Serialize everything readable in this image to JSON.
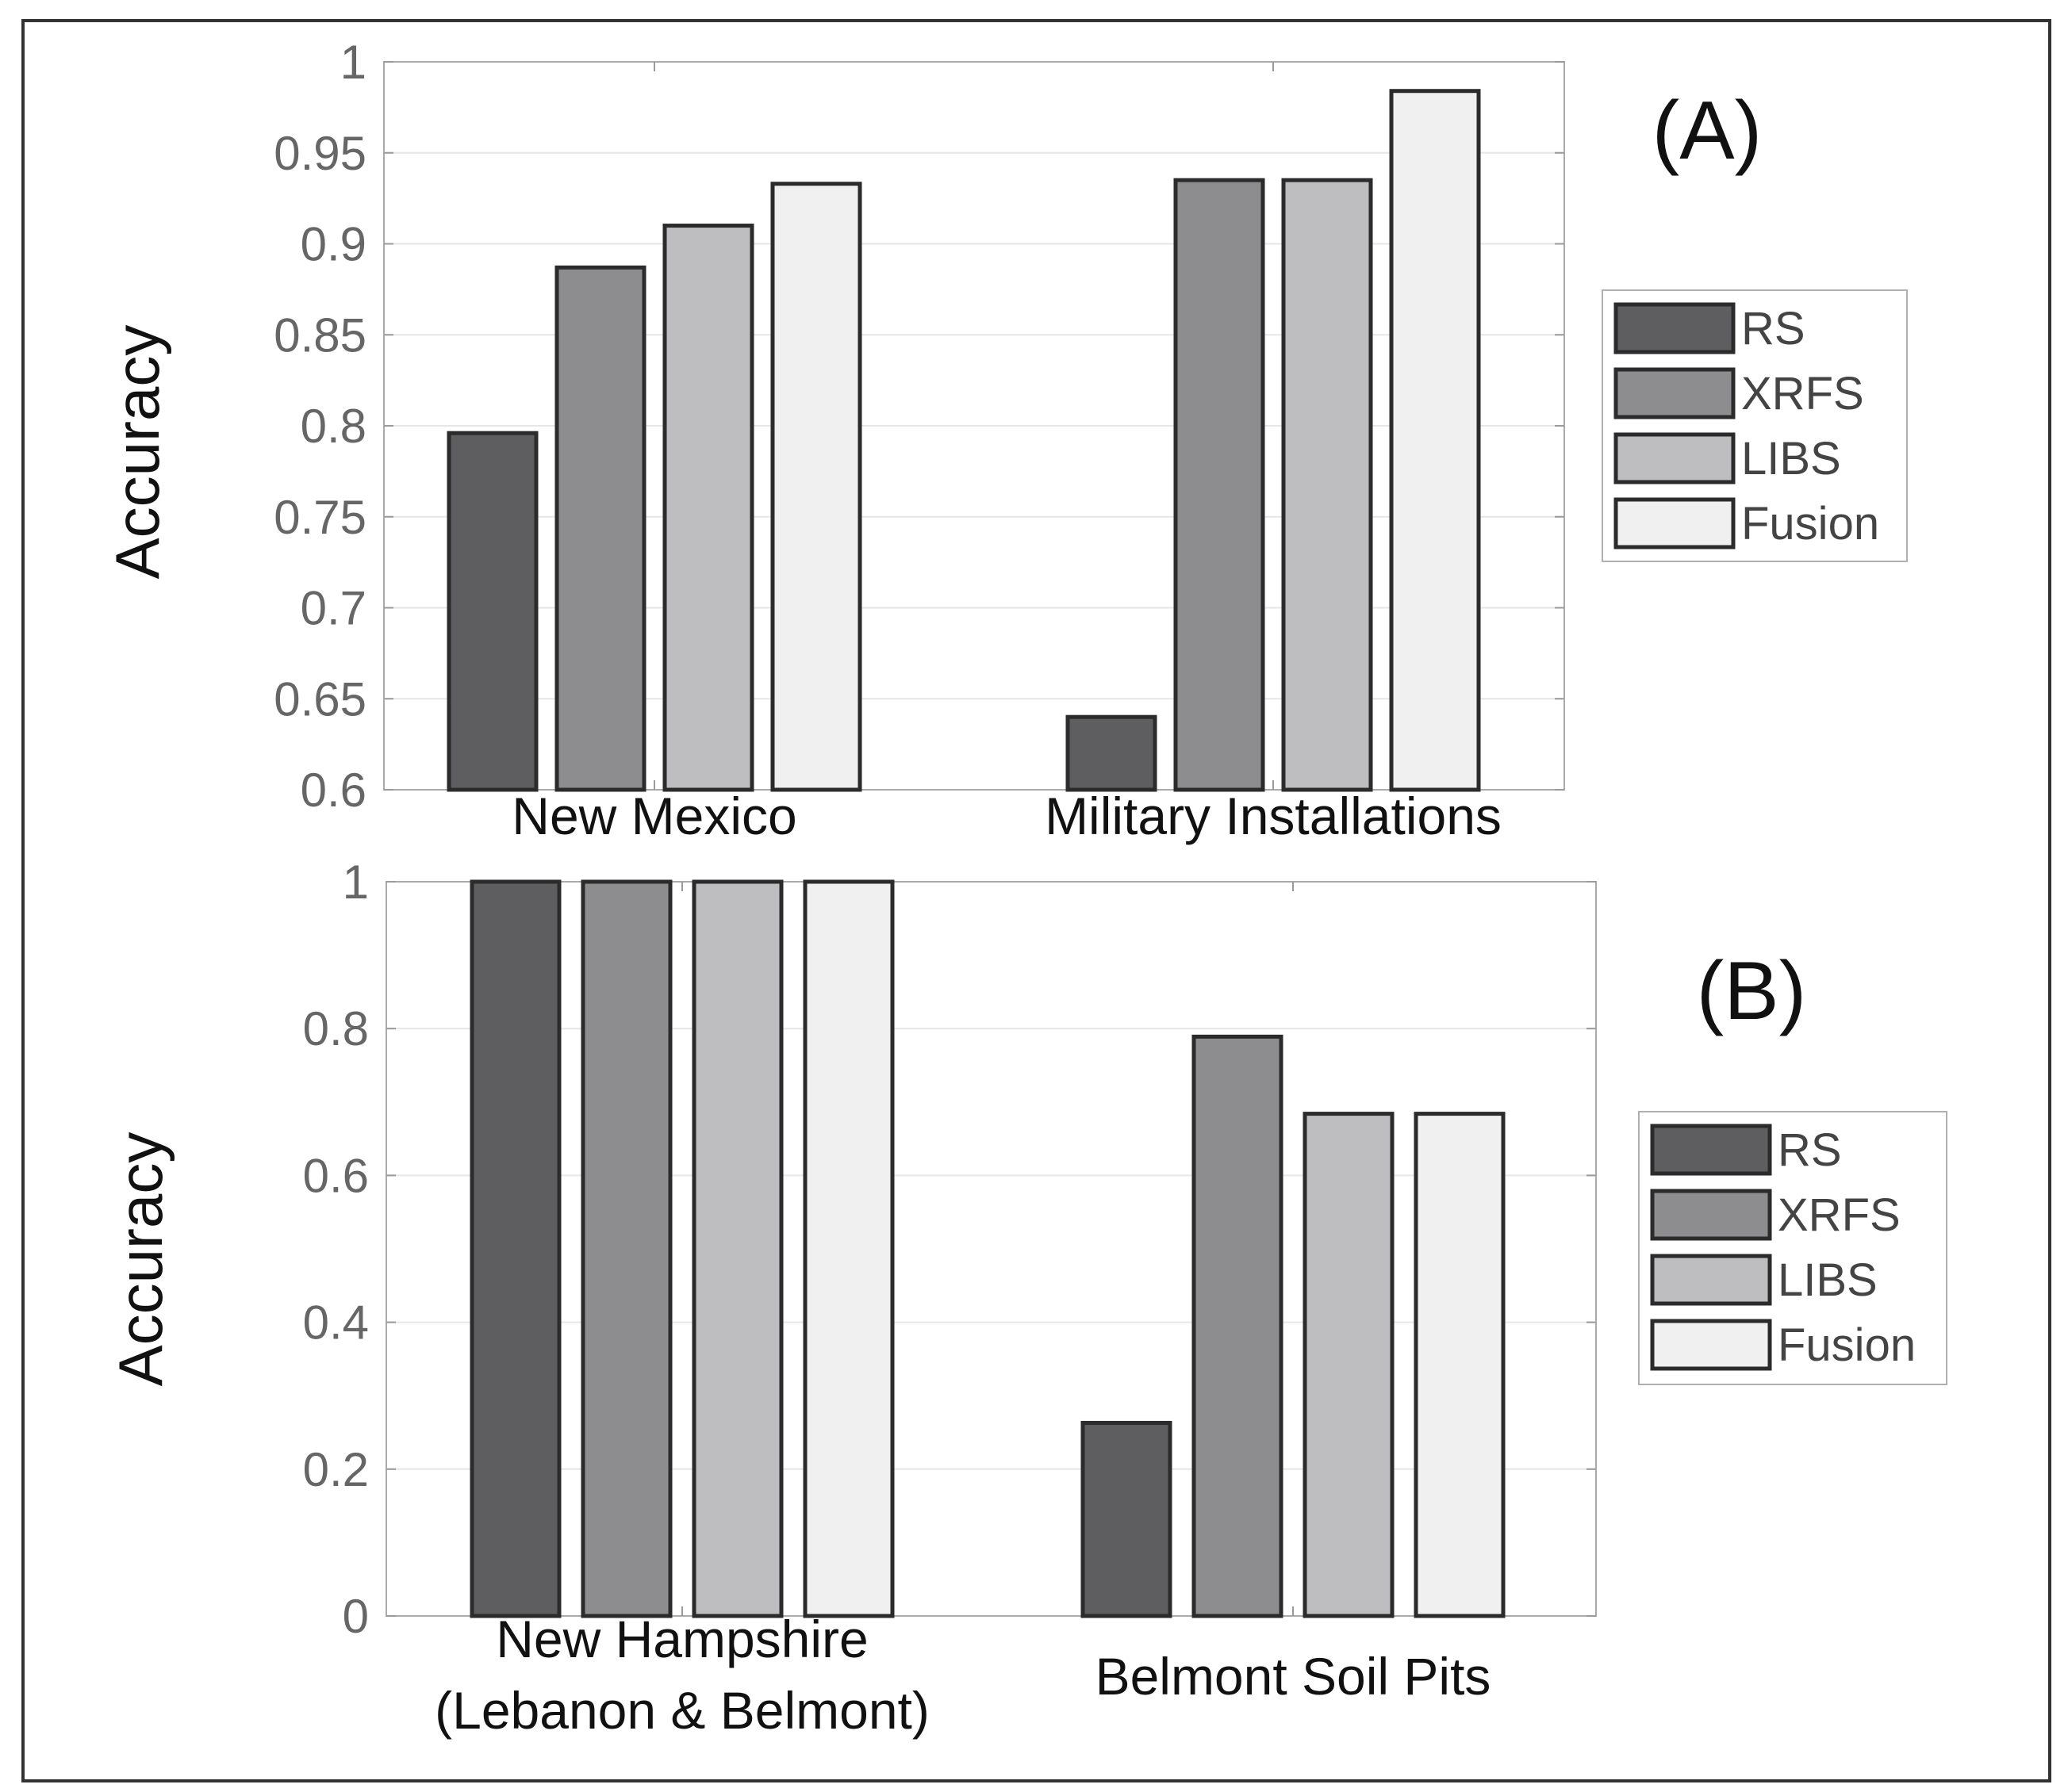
{
  "chart_data": [
    {
      "type": "bar",
      "panel_label": "(A)",
      "ylabel": "Accuracy",
      "xlabel": "",
      "ylim": [
        0.6,
        1
      ],
      "yticks": [
        "0.6",
        "0.65",
        "0.7",
        "0.75",
        "0.8",
        "0.85",
        "0.9",
        "0.95",
        "1"
      ],
      "ytick_values": [
        0.6,
        0.65,
        0.7,
        0.75,
        0.8,
        0.85,
        0.9,
        0.95,
        1
      ],
      "grid": true,
      "legend_position": "right",
      "categories": [
        [
          "New Mexico"
        ],
        [
          "Military Installations"
        ]
      ],
      "series": [
        {
          "name": "RS",
          "color": "#5e5e60",
          "values": [
            0.796,
            0.64
          ]
        },
        {
          "name": "XRFS",
          "color": "#8d8d90",
          "values": [
            0.887,
            0.935
          ]
        },
        {
          "name": "LIBS",
          "color": "#bebec1",
          "values": [
            0.91,
            0.935
          ]
        },
        {
          "name": "Fusion",
          "color": "#f0f0f1",
          "values": [
            0.933,
            0.984
          ]
        }
      ]
    },
    {
      "type": "bar",
      "panel_label": "(B)",
      "ylabel": "Accuracy",
      "xlabel": "",
      "ylim": [
        0,
        1
      ],
      "yticks": [
        "0",
        "0.2",
        "0.4",
        "0.6",
        "0.8",
        "1"
      ],
      "ytick_values": [
        0,
        0.2,
        0.4,
        0.6,
        0.8,
        1
      ],
      "grid": true,
      "legend_position": "right",
      "categories": [
        [
          "New Hampshire",
          "(Lebanon & Belmont)"
        ],
        [
          "Belmont Soil Pits"
        ]
      ],
      "series": [
        {
          "name": "RS",
          "color": "#5e5e60",
          "values": [
            1.0,
            0.263
          ]
        },
        {
          "name": "XRFS",
          "color": "#8d8d90",
          "values": [
            1.0,
            0.789
          ]
        },
        {
          "name": "LIBS",
          "color": "#bebec1",
          "values": [
            1.0,
            0.684
          ]
        },
        {
          "name": "Fusion",
          "color": "#f0f0f1",
          "values": [
            1.0,
            0.684
          ]
        }
      ]
    }
  ]
}
